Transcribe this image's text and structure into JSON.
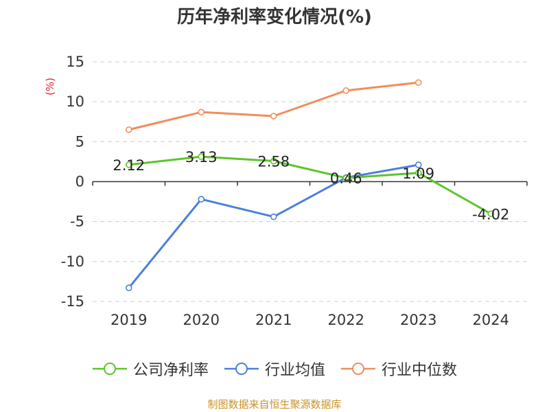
{
  "chart_data": {
    "type": "line",
    "title": "历年净利率变化情况(%)",
    "ylabel": "(%)",
    "xlabel": "",
    "categories": [
      "2019",
      "2020",
      "2021",
      "2022",
      "2023",
      "2024"
    ],
    "ylim": [
      -15,
      15
    ],
    "yticks": [
      "15",
      "10",
      "5",
      "0",
      "-5",
      "-10",
      "-15"
    ],
    "grid": true,
    "legend_position": "bottom",
    "series": [
      {
        "name": "公司净利率",
        "color": "#5cc42a",
        "values": [
          2.12,
          3.13,
          2.58,
          0.46,
          1.09,
          -4.02
        ],
        "labels": [
          "2.12",
          "3.13",
          "2.58",
          "0.46",
          "1.09",
          "-4.02"
        ]
      },
      {
        "name": "行业均值",
        "color": "#4a7fdb",
        "values": [
          -13.3,
          -2.2,
          -4.4,
          0.5,
          2.1,
          null
        ]
      },
      {
        "name": "行业中位数",
        "color": "#f28c5a",
        "values": [
          6.5,
          8.7,
          8.2,
          11.4,
          12.4,
          null
        ]
      }
    ]
  },
  "source": "制图数据来自恒生聚源数据库"
}
